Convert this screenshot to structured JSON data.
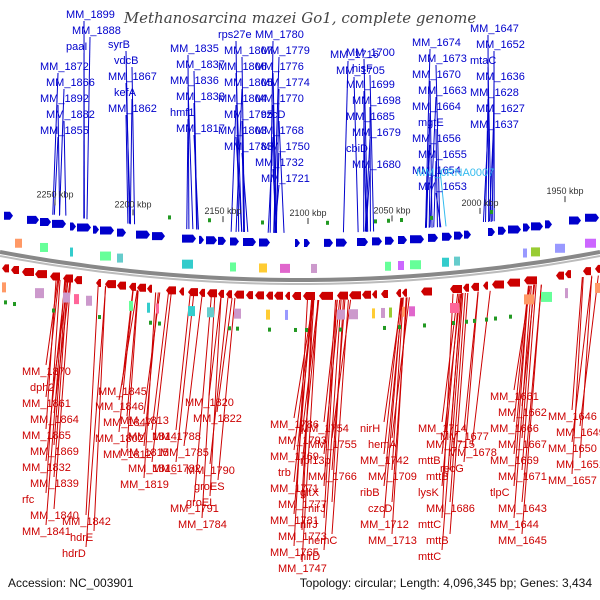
{
  "title": "Methanosarcina mazei Go1, complete genome",
  "footer": {
    "accession": "Accession: NC_003901",
    "summary": "Topology: circular; Length: 4,096,345 bp; Genes: 3,434"
  },
  "colors": {
    "forward": "#0000cc",
    "reverse": "#cc0000",
    "rna": "#33bbee",
    "backbone": "#888888"
  },
  "scale_ticks": [
    "2250 kbp",
    "2200 kbp",
    "2150 kbp",
    "2100 kbp",
    "2050 kbp",
    "2000 kbp",
    "1950 kbp"
  ],
  "forward_labels": [
    {
      "t": "MM_1899"
    },
    {
      "t": "MM_1888"
    },
    {
      "t": "paaI"
    },
    {
      "t": "MM_1872"
    },
    {
      "t": "MM_1866"
    },
    {
      "t": "MM_1892"
    },
    {
      "t": "MM_1882"
    },
    {
      "t": "MM_1855"
    },
    {
      "t": "syrB"
    },
    {
      "t": "vdcB"
    },
    {
      "t": "MM_1867"
    },
    {
      "t": "kefA"
    },
    {
      "t": "MM_1862"
    },
    {
      "t": "MM_1835"
    },
    {
      "t": "MM_1837"
    },
    {
      "t": "MM_1836"
    },
    {
      "t": "MM_1833"
    },
    {
      "t": "hmf1"
    },
    {
      "t": "MM_1817"
    },
    {
      "t": "rps27e"
    },
    {
      "t": "MM_1807"
    },
    {
      "t": "MM_1806"
    },
    {
      "t": "MM_1805"
    },
    {
      "t": "MM_1804"
    },
    {
      "t": "MM_1795"
    },
    {
      "t": "MM_1803"
    },
    {
      "t": "MM_1783"
    },
    {
      "t": "MM_1780"
    },
    {
      "t": "MM_1779"
    },
    {
      "t": "MM_1776"
    },
    {
      "t": "MM_1774"
    },
    {
      "t": "MM_1770"
    },
    {
      "t": "czcD"
    },
    {
      "t": "MM_1768"
    },
    {
      "t": "MM_1750"
    },
    {
      "t": "MM_1732"
    },
    {
      "t": "MM_1721"
    },
    {
      "t": "MM_1716"
    },
    {
      "t": "MM_1705"
    },
    {
      "t": "MM_1700"
    },
    {
      "t": "hisF"
    },
    {
      "t": "MM_1699"
    },
    {
      "t": "MM_1698"
    },
    {
      "t": "MM_1685"
    },
    {
      "t": "MM_1679"
    },
    {
      "t": "cbiD"
    },
    {
      "t": "MM_1680"
    },
    {
      "t": "MM_1674"
    },
    {
      "t": "MM_1673"
    },
    {
      "t": "MM_1670"
    },
    {
      "t": "MM_1663"
    },
    {
      "t": "MM_1664"
    },
    {
      "t": "mgtE"
    },
    {
      "t": "MM_1656"
    },
    {
      "t": "MM_1655"
    },
    {
      "t": "MM_1654"
    },
    {
      "t": "MM_1653"
    },
    {
      "t": "MM_1647"
    },
    {
      "t": "MM_1652"
    },
    {
      "t": "mtaC"
    },
    {
      "t": "MM_1636"
    },
    {
      "t": "MM_1628"
    },
    {
      "t": "MM_1627"
    },
    {
      "t": "MM_1637"
    }
  ],
  "rna_labels": [
    {
      "t": "MM_0RNA0007"
    }
  ],
  "reverse_labels": [
    {
      "t": "MM_1870"
    },
    {
      "t": "dph2"
    },
    {
      "t": "MM_1861"
    },
    {
      "t": "MM_1864"
    },
    {
      "t": "MM_1865"
    },
    {
      "t": "MM_1869"
    },
    {
      "t": "MM_1832"
    },
    {
      "t": "MM_1839"
    },
    {
      "t": "rfc"
    },
    {
      "t": "MM_1840"
    },
    {
      "t": "MM_1841"
    },
    {
      "t": "MM_1842"
    },
    {
      "t": "hdrE"
    },
    {
      "t": "hdrD"
    },
    {
      "t": "MM_1845"
    },
    {
      "t": "MM_1846"
    },
    {
      "t": "MM_1847"
    },
    {
      "t": "MM_1802"
    },
    {
      "t": "MM_1812"
    },
    {
      "t": "MM_1813"
    },
    {
      "t": "MM_1814"
    },
    {
      "t": "MM_1815"
    },
    {
      "t": "MM_1816"
    },
    {
      "t": "MM_1819"
    },
    {
      "t": "MM_1820"
    },
    {
      "t": "MM_1822"
    },
    {
      "t": "MM_1788"
    },
    {
      "t": "MM_1785"
    },
    {
      "t": "MM_1782"
    },
    {
      "t": "MM_1790"
    },
    {
      "t": "groES"
    },
    {
      "t": "groEL"
    },
    {
      "t": "MM_1791"
    },
    {
      "t": "MM_1784"
    },
    {
      "t": "MM_1786"
    },
    {
      "t": "MM_1793"
    },
    {
      "t": "MM_1769"
    },
    {
      "t": "trb"
    },
    {
      "t": "MM_1771"
    },
    {
      "t": "MM_1777"
    },
    {
      "t": "MM_1781"
    },
    {
      "t": "MM_1773"
    },
    {
      "t": "MM_1765"
    },
    {
      "t": "MM_1747"
    },
    {
      "t": "MM_1754"
    },
    {
      "t": "MM_1755"
    },
    {
      "t": "rpl13p"
    },
    {
      "t": "MM_1766"
    },
    {
      "t": "gltX"
    },
    {
      "t": "nirJ"
    },
    {
      "t": "nirJ"
    },
    {
      "t": "hemC"
    },
    {
      "t": "nirD"
    },
    {
      "t": "nirH"
    },
    {
      "t": "nirD"
    },
    {
      "t": "nirH"
    },
    {
      "t": "hemA"
    },
    {
      "t": "MM_1742"
    },
    {
      "t": "MM_1709"
    },
    {
      "t": "ribB"
    },
    {
      "t": "czcD"
    },
    {
      "t": "MM_1712"
    },
    {
      "t": "MM_1713"
    },
    {
      "t": "MM_1714"
    },
    {
      "t": "MM_1715"
    },
    {
      "t": "mttB"
    },
    {
      "t": "mttB"
    },
    {
      "t": "lysK"
    },
    {
      "t": "MM_1686"
    },
    {
      "t": "mttC"
    },
    {
      "t": "mttB"
    },
    {
      "t": "mttC"
    },
    {
      "t": "MM_1691"
    },
    {
      "t": "MM_1677"
    },
    {
      "t": "MM_1678"
    },
    {
      "t": "recG"
    },
    {
      "t": "MM_1661"
    },
    {
      "t": "MM_1662"
    },
    {
      "t": "MM_1666"
    },
    {
      "t": "MM_1667"
    },
    {
      "t": "MM_1669"
    },
    {
      "t": "MM_1671"
    },
    {
      "t": "tlpC"
    },
    {
      "t": "MM_1643"
    },
    {
      "t": "MM_1644"
    },
    {
      "t": "MM_1645"
    },
    {
      "t": "MM_1646"
    },
    {
      "t": "MM_1649"
    },
    {
      "t": "MM_1650"
    },
    {
      "t": "MM_1651"
    },
    {
      "t": "MM_1657"
    }
  ]
}
